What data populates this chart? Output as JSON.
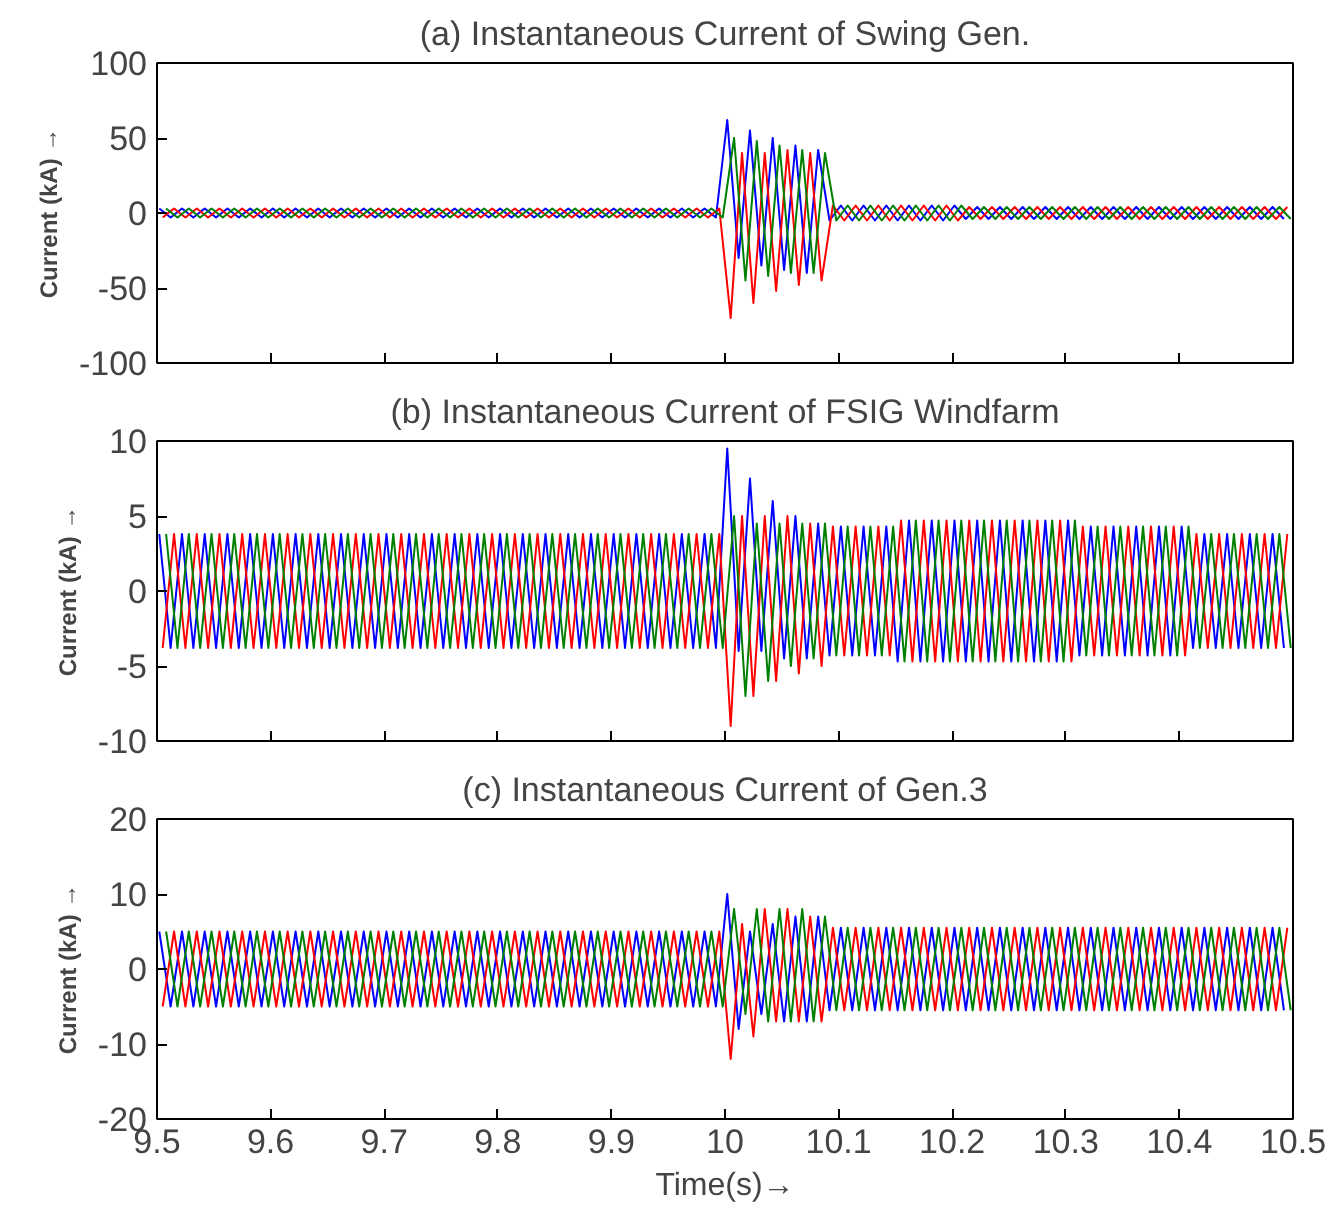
{
  "chart_data": [
    {
      "type": "line",
      "title": "(a) Instantaneous Current of Swing Gen.",
      "ylabel": "Current (kA) →",
      "xlim": [
        9.5,
        10.5
      ],
      "ylim": [
        -100,
        100
      ],
      "xticks": [
        9.5,
        9.6,
        9.7,
        9.8,
        9.9,
        10,
        10.1,
        10.2,
        10.3,
        10.4,
        10.5
      ],
      "yticks": [
        -100,
        -50,
        0,
        50,
        100
      ],
      "tick_labels": "y",
      "series": [
        {
          "color": "#0000ff",
          "x": [
            9.502,
            9.512,
            9.522,
            9.532,
            9.542,
            9.552,
            9.562,
            9.572,
            9.582,
            9.592,
            9.602,
            9.612,
            9.622,
            9.632,
            9.642,
            9.652,
            9.662,
            9.672,
            9.682,
            9.692,
            9.702,
            9.712,
            9.722,
            9.732,
            9.742,
            9.752,
            9.762,
            9.772,
            9.782,
            9.792,
            9.802,
            9.812,
            9.822,
            9.832,
            9.842,
            9.852,
            9.862,
            9.872,
            9.882,
            9.892,
            9.902,
            9.912,
            9.922,
            9.932,
            9.942,
            9.952,
            9.962,
            9.972,
            9.982,
            9.992,
            10.002,
            10.012,
            10.022,
            10.032,
            10.042,
            10.052,
            10.062,
            10.072,
            10.082,
            10.092,
            10.102,
            10.112,
            10.122,
            10.132,
            10.142,
            10.152,
            10.162,
            10.172,
            10.182,
            10.192,
            10.202,
            10.212,
            10.222,
            10.232,
            10.242,
            10.252,
            10.262,
            10.272,
            10.282,
            10.292,
            10.302,
            10.312,
            10.322,
            10.332,
            10.342,
            10.352,
            10.362,
            10.372,
            10.382,
            10.392,
            10.402,
            10.412,
            10.422,
            10.432,
            10.442,
            10.452,
            10.462,
            10.472,
            10.482,
            10.492
          ],
          "values": [
            3,
            -3,
            3,
            -3,
            3,
            -3,
            3,
            -3,
            3,
            -3,
            3,
            -3,
            3,
            -3,
            3,
            -3,
            3,
            -3,
            3,
            -3,
            3,
            -3,
            3,
            -3,
            3,
            -3,
            3,
            -3,
            3,
            -3,
            3,
            -3,
            3,
            -3,
            3,
            -3,
            3,
            -3,
            3,
            -3,
            3,
            -3,
            3,
            -3,
            3,
            -3,
            3,
            -3,
            3,
            -3,
            62,
            -30,
            55,
            -35,
            50,
            -38,
            45,
            -40,
            42,
            -5,
            5,
            -5,
            5,
            -5,
            5,
            -5,
            5,
            -5,
            5,
            -5,
            5,
            -4,
            4,
            -4,
            4,
            -4,
            4,
            -4,
            4,
            -4,
            4,
            -4,
            4,
            -4,
            4,
            -4,
            4,
            -4,
            4,
            -4,
            4,
            -4,
            4,
            -4,
            4,
            -4,
            4,
            -4,
            4,
            -4
          ]
        },
        {
          "color": "#ff0000",
          "x": [
            9.505,
            9.515,
            9.525,
            9.535,
            9.545,
            9.555,
            9.565,
            9.575,
            9.585,
            9.595,
            9.605,
            9.615,
            9.625,
            9.635,
            9.645,
            9.655,
            9.665,
            9.675,
            9.685,
            9.695,
            9.705,
            9.715,
            9.725,
            9.735,
            9.745,
            9.755,
            9.765,
            9.775,
            9.785,
            9.795,
            9.805,
            9.815,
            9.825,
            9.835,
            9.845,
            9.855,
            9.865,
            9.875,
            9.885,
            9.895,
            9.905,
            9.915,
            9.925,
            9.935,
            9.945,
            9.955,
            9.965,
            9.975,
            9.985,
            9.995,
            10.005,
            10.015,
            10.025,
            10.035,
            10.045,
            10.055,
            10.065,
            10.075,
            10.085,
            10.095,
            10.105,
            10.115,
            10.125,
            10.135,
            10.145,
            10.155,
            10.165,
            10.175,
            10.185,
            10.195,
            10.205,
            10.215,
            10.225,
            10.235,
            10.245,
            10.255,
            10.265,
            10.275,
            10.285,
            10.295,
            10.305,
            10.315,
            10.325,
            10.335,
            10.345,
            10.355,
            10.365,
            10.375,
            10.385,
            10.395,
            10.405,
            10.415,
            10.425,
            10.435,
            10.445,
            10.455,
            10.465,
            10.475,
            10.485,
            10.495
          ],
          "values": [
            -3,
            3,
            -3,
            3,
            -3,
            3,
            -3,
            3,
            -3,
            3,
            -3,
            3,
            -3,
            3,
            -3,
            3,
            -3,
            3,
            -3,
            3,
            -3,
            3,
            -3,
            3,
            -3,
            3,
            -3,
            3,
            -3,
            3,
            -3,
            3,
            -3,
            3,
            -3,
            3,
            -3,
            3,
            -3,
            3,
            -3,
            3,
            -3,
            3,
            -3,
            3,
            -3,
            3,
            -3,
            3,
            -70,
            40,
            -60,
            40,
            -52,
            42,
            -48,
            40,
            -45,
            5,
            -5,
            5,
            -5,
            5,
            -5,
            5,
            -5,
            5,
            -5,
            5,
            -5,
            4,
            -4,
            4,
            -4,
            4,
            -4,
            4,
            -4,
            4,
            -4,
            4,
            -4,
            4,
            -4,
            4,
            -4,
            4,
            -4,
            4,
            -4,
            4,
            -4,
            4,
            -4,
            4,
            -4,
            4,
            -4,
            4
          ]
        },
        {
          "color": "#008000",
          "x": [
            9.508,
            9.518,
            9.528,
            9.538,
            9.548,
            9.558,
            9.568,
            9.578,
            9.588,
            9.598,
            9.608,
            9.618,
            9.628,
            9.638,
            9.648,
            9.658,
            9.668,
            9.678,
            9.688,
            9.698,
            9.708,
            9.718,
            9.728,
            9.738,
            9.748,
            9.758,
            9.768,
            9.778,
            9.788,
            9.798,
            9.808,
            9.818,
            9.828,
            9.838,
            9.848,
            9.858,
            9.868,
            9.878,
            9.888,
            9.898,
            9.908,
            9.918,
            9.928,
            9.938,
            9.948,
            9.958,
            9.968,
            9.978,
            9.988,
            9.998,
            10.008,
            10.018,
            10.028,
            10.038,
            10.048,
            10.058,
            10.068,
            10.078,
            10.088,
            10.098,
            10.108,
            10.118,
            10.128,
            10.138,
            10.148,
            10.158,
            10.168,
            10.178,
            10.188,
            10.198,
            10.208,
            10.218,
            10.228,
            10.238,
            10.248,
            10.258,
            10.268,
            10.278,
            10.288,
            10.298,
            10.308,
            10.318,
            10.328,
            10.338,
            10.348,
            10.358,
            10.368,
            10.378,
            10.388,
            10.398,
            10.408,
            10.418,
            10.428,
            10.438,
            10.448,
            10.458,
            10.468,
            10.478,
            10.488,
            10.498
          ],
          "values": [
            3,
            -3,
            3,
            -3,
            3,
            -3,
            3,
            -3,
            3,
            -3,
            3,
            -3,
            3,
            -3,
            3,
            -3,
            3,
            -3,
            3,
            -3,
            3,
            -3,
            3,
            -3,
            3,
            -3,
            3,
            -3,
            3,
            -3,
            3,
            -3,
            3,
            -3,
            3,
            -3,
            3,
            -3,
            3,
            -3,
            3,
            -3,
            3,
            -3,
            3,
            -3,
            3,
            -3,
            3,
            -3,
            50,
            -45,
            48,
            -42,
            45,
            -40,
            42,
            -40,
            40,
            -5,
            5,
            -5,
            5,
            -5,
            5,
            -5,
            5,
            -5,
            5,
            -5,
            5,
            -4,
            4,
            -4,
            4,
            -4,
            4,
            -4,
            4,
            -4,
            4,
            -4,
            4,
            -4,
            4,
            -4,
            4,
            -4,
            4,
            -4,
            4,
            -4,
            4,
            -4,
            4,
            -4,
            4,
            -4,
            4,
            -4
          ]
        }
      ]
    },
    {
      "type": "line",
      "title": "(b) Instantaneous Current of FSIG Windfarm",
      "ylabel": "Current (kA) →",
      "xlim": [
        9.5,
        10.5
      ],
      "ylim": [
        -10,
        10
      ],
      "xticks": [
        9.5,
        9.6,
        9.7,
        9.8,
        9.9,
        10,
        10.1,
        10.2,
        10.3,
        10.4,
        10.5
      ],
      "yticks": [
        -10,
        -5,
        0,
        5,
        10
      ],
      "tick_labels": "y",
      "series": [
        {
          "color": "#0000ff",
          "x": [
            9.502,
            9.512,
            9.522,
            9.532,
            9.542,
            9.552,
            9.562,
            9.572,
            9.582,
            9.592,
            9.602,
            9.612,
            9.622,
            9.632,
            9.642,
            9.652,
            9.662,
            9.672,
            9.682,
            9.692,
            9.702,
            9.712,
            9.722,
            9.732,
            9.742,
            9.752,
            9.762,
            9.772,
            9.782,
            9.792,
            9.802,
            9.812,
            9.822,
            9.832,
            9.842,
            9.852,
            9.862,
            9.872,
            9.882,
            9.892,
            9.902,
            9.912,
            9.922,
            9.932,
            9.942,
            9.952,
            9.962,
            9.972,
            9.982,
            9.992,
            10.002,
            10.012,
            10.022,
            10.032,
            10.042,
            10.052,
            10.062,
            10.072,
            10.082,
            10.092,
            10.102,
            10.112,
            10.122,
            10.132,
            10.142,
            10.152,
            10.162,
            10.172,
            10.182,
            10.192,
            10.202,
            10.212,
            10.222,
            10.232,
            10.242,
            10.252,
            10.262,
            10.272,
            10.282,
            10.292,
            10.302,
            10.312,
            10.322,
            10.332,
            10.342,
            10.352,
            10.362,
            10.372,
            10.382,
            10.392,
            10.402,
            10.412,
            10.422,
            10.432,
            10.442,
            10.452,
            10.462,
            10.472,
            10.482,
            10.492
          ],
          "values": [
            3.8,
            -3.8,
            3.8,
            -3.8,
            3.8,
            -3.8,
            3.8,
            -3.8,
            3.8,
            -3.8,
            3.8,
            -3.8,
            3.8,
            -3.8,
            3.8,
            -3.8,
            3.8,
            -3.8,
            3.8,
            -3.8,
            3.8,
            -3.8,
            3.8,
            -3.8,
            3.8,
            -3.8,
            3.8,
            -3.8,
            3.8,
            -3.8,
            3.8,
            -3.8,
            3.8,
            -3.8,
            3.8,
            -3.8,
            3.8,
            -3.8,
            3.8,
            -3.8,
            3.8,
            -3.8,
            3.8,
            -3.8,
            3.8,
            -3.8,
            3.8,
            -3.8,
            3.8,
            -3.8,
            9.5,
            -4,
            7.5,
            -4,
            6,
            -4.5,
            5,
            -4.5,
            4.5,
            -4.3,
            4.3,
            -4.3,
            4.3,
            -4.3,
            4.3,
            -4.7,
            4.7,
            -4.7,
            4.7,
            -4.7,
            4.7,
            -4.7,
            4.7,
            -4.7,
            4.7,
            -4.7,
            4.7,
            -4.7,
            4.7,
            -4.7,
            4.7,
            -4.3,
            4.3,
            -4.3,
            4.3,
            -4.3,
            4.3,
            -4.3,
            4.3,
            -4.3,
            4.3,
            -3.8,
            3.8,
            -3.8,
            3.8,
            -3.8,
            3.8,
            -3.8,
            3.8,
            -3.8
          ]
        },
        {
          "color": "#ff0000",
          "x": [
            9.505,
            9.515,
            9.525,
            9.535,
            9.545,
            9.555,
            9.565,
            9.575,
            9.585,
            9.595,
            9.605,
            9.615,
            9.625,
            9.635,
            9.645,
            9.655,
            9.665,
            9.675,
            9.685,
            9.695,
            9.705,
            9.715,
            9.725,
            9.735,
            9.745,
            9.755,
            9.765,
            9.775,
            9.785,
            9.795,
            9.805,
            9.815,
            9.825,
            9.835,
            9.845,
            9.855,
            9.865,
            9.875,
            9.885,
            9.895,
            9.905,
            9.915,
            9.925,
            9.935,
            9.945,
            9.955,
            9.965,
            9.975,
            9.985,
            9.995,
            10.005,
            10.015,
            10.025,
            10.035,
            10.045,
            10.055,
            10.065,
            10.075,
            10.085,
            10.095,
            10.105,
            10.115,
            10.125,
            10.135,
            10.145,
            10.155,
            10.165,
            10.175,
            10.185,
            10.195,
            10.205,
            10.215,
            10.225,
            10.235,
            10.245,
            10.255,
            10.265,
            10.275,
            10.285,
            10.295,
            10.305,
            10.315,
            10.325,
            10.335,
            10.345,
            10.355,
            10.365,
            10.375,
            10.385,
            10.395,
            10.405,
            10.415,
            10.425,
            10.435,
            10.445,
            10.455,
            10.465,
            10.475,
            10.485,
            10.495
          ],
          "values": [
            -3.8,
            3.8,
            -3.8,
            3.8,
            -3.8,
            3.8,
            -3.8,
            3.8,
            -3.8,
            3.8,
            -3.8,
            3.8,
            -3.8,
            3.8,
            -3.8,
            3.8,
            -3.8,
            3.8,
            -3.8,
            3.8,
            -3.8,
            3.8,
            -3.8,
            3.8,
            -3.8,
            3.8,
            -3.8,
            3.8,
            -3.8,
            3.8,
            -3.8,
            3.8,
            -3.8,
            3.8,
            -3.8,
            3.8,
            -3.8,
            3.8,
            -3.8,
            3.8,
            -3.8,
            3.8,
            -3.8,
            3.8,
            -3.8,
            3.8,
            -3.8,
            3.8,
            -3.8,
            3.8,
            -9,
            5,
            -7,
            5,
            -6,
            5,
            -5.5,
            4.5,
            -5,
            4.3,
            -4.3,
            4.3,
            -4.3,
            4.3,
            -4.3,
            4.7,
            -4.7,
            4.7,
            -4.7,
            4.7,
            -4.7,
            4.7,
            -4.7,
            4.7,
            -4.7,
            4.7,
            -4.7,
            4.7,
            -4.7,
            4.7,
            -4.7,
            4.3,
            -4.3,
            4.3,
            -4.3,
            4.3,
            -4.3,
            4.3,
            -4.3,
            4.3,
            -4.3,
            3.8,
            -3.8,
            3.8,
            -3.8,
            3.8,
            -3.8,
            3.8,
            -3.8,
            3.8
          ]
        },
        {
          "color": "#008000",
          "x": [
            9.508,
            9.518,
            9.528,
            9.538,
            9.548,
            9.558,
            9.568,
            9.578,
            9.588,
            9.598,
            9.608,
            9.618,
            9.628,
            9.638,
            9.648,
            9.658,
            9.668,
            9.678,
            9.688,
            9.698,
            9.708,
            9.718,
            9.728,
            9.738,
            9.748,
            9.758,
            9.768,
            9.778,
            9.788,
            9.798,
            9.808,
            9.818,
            9.828,
            9.838,
            9.848,
            9.858,
            9.868,
            9.878,
            9.888,
            9.898,
            9.908,
            9.918,
            9.928,
            9.938,
            9.948,
            9.958,
            9.968,
            9.978,
            9.988,
            9.998,
            10.008,
            10.018,
            10.028,
            10.038,
            10.048,
            10.058,
            10.068,
            10.078,
            10.088,
            10.098,
            10.108,
            10.118,
            10.128,
            10.138,
            10.148,
            10.158,
            10.168,
            10.178,
            10.188,
            10.198,
            10.208,
            10.218,
            10.228,
            10.238,
            10.248,
            10.258,
            10.268,
            10.278,
            10.288,
            10.298,
            10.308,
            10.318,
            10.328,
            10.338,
            10.348,
            10.358,
            10.368,
            10.378,
            10.388,
            10.398,
            10.408,
            10.418,
            10.428,
            10.438,
            10.448,
            10.458,
            10.468,
            10.478,
            10.488,
            10.498
          ],
          "values": [
            3.8,
            -3.8,
            3.8,
            -3.8,
            3.8,
            -3.8,
            3.8,
            -3.8,
            3.8,
            -3.8,
            3.8,
            -3.8,
            3.8,
            -3.8,
            3.8,
            -3.8,
            3.8,
            -3.8,
            3.8,
            -3.8,
            3.8,
            -3.8,
            3.8,
            -3.8,
            3.8,
            -3.8,
            3.8,
            -3.8,
            3.8,
            -3.8,
            3.8,
            -3.8,
            3.8,
            -3.8,
            3.8,
            -3.8,
            3.8,
            -3.8,
            3.8,
            -3.8,
            3.8,
            -3.8,
            3.8,
            -3.8,
            3.8,
            -3.8,
            3.8,
            -3.8,
            3.8,
            -3.8,
            5,
            -7,
            4.5,
            -6,
            4.5,
            -5,
            4.5,
            -4.5,
            4.5,
            -4.3,
            4.3,
            -4.3,
            4.3,
            -4.3,
            4.3,
            -4.7,
            4.7,
            -4.7,
            4.7,
            -4.7,
            4.7,
            -4.7,
            4.7,
            -4.7,
            4.7,
            -4.7,
            4.7,
            -4.7,
            4.7,
            -4.7,
            4.7,
            -4.3,
            4.3,
            -4.3,
            4.3,
            -4.3,
            4.3,
            -4.3,
            4.3,
            -4.3,
            4.3,
            -3.8,
            3.8,
            -3.8,
            3.8,
            -3.8,
            3.8,
            -3.8,
            3.8,
            -3.8
          ]
        }
      ]
    },
    {
      "type": "line",
      "title": "(c) Instantaneous Current of Gen.3",
      "ylabel": "Current (kA) →",
      "xlabel": "Time(s)→",
      "xlim": [
        9.5,
        10.5
      ],
      "ylim": [
        -20,
        20
      ],
      "xticks": [
        9.5,
        9.6,
        9.7,
        9.8,
        9.9,
        10,
        10.1,
        10.2,
        10.3,
        10.4,
        10.5
      ],
      "yticks": [
        -20,
        -10,
        0,
        10,
        20
      ],
      "series": [
        {
          "color": "#0000ff",
          "x": [
            9.502,
            9.512,
            9.522,
            9.532,
            9.542,
            9.552,
            9.562,
            9.572,
            9.582,
            9.592,
            9.602,
            9.612,
            9.622,
            9.632,
            9.642,
            9.652,
            9.662,
            9.672,
            9.682,
            9.692,
            9.702,
            9.712,
            9.722,
            9.732,
            9.742,
            9.752,
            9.762,
            9.772,
            9.782,
            9.792,
            9.802,
            9.812,
            9.822,
            9.832,
            9.842,
            9.852,
            9.862,
            9.872,
            9.882,
            9.892,
            9.902,
            9.912,
            9.922,
            9.932,
            9.942,
            9.952,
            9.962,
            9.972,
            9.982,
            9.992,
            10.002,
            10.012,
            10.022,
            10.032,
            10.042,
            10.052,
            10.062,
            10.072,
            10.082,
            10.092,
            10.102,
            10.112,
            10.122,
            10.132,
            10.142,
            10.152,
            10.162,
            10.172,
            10.182,
            10.192,
            10.202,
            10.212,
            10.222,
            10.232,
            10.242,
            10.252,
            10.262,
            10.272,
            10.282,
            10.292,
            10.302,
            10.312,
            10.322,
            10.332,
            10.342,
            10.352,
            10.362,
            10.372,
            10.382,
            10.392,
            10.402,
            10.412,
            10.422,
            10.432,
            10.442,
            10.452,
            10.462,
            10.472,
            10.482,
            10.492
          ],
          "values": [
            5,
            -5,
            5,
            -5,
            5,
            -5,
            5,
            -5,
            5,
            -5,
            5,
            -5,
            5,
            -5,
            5,
            -5,
            5,
            -5,
            5,
            -5,
            5,
            -5,
            5,
            -5,
            5,
            -5,
            5,
            -5,
            5,
            -5,
            5,
            -5,
            5,
            -5,
            5,
            -5,
            5,
            -5,
            5,
            -5,
            5,
            -5,
            5,
            -5,
            5,
            -5,
            5,
            -5,
            5,
            -5,
            10,
            -8,
            5,
            -6,
            6,
            -7,
            7,
            -7,
            7,
            -5.5,
            5.5,
            -5.5,
            5.5,
            -5.5,
            5.5,
            -5.5,
            5.5,
            -5.5,
            5.5,
            -5.5,
            5.5,
            -5.5,
            5.5,
            -5.5,
            5.5,
            -5.5,
            5.5,
            -5.5,
            5.5,
            -5.5,
            5.5,
            -5.5,
            5.5,
            -5.5,
            5.5,
            -5.5,
            5.5,
            -5.5,
            5.5,
            -5.5,
            5.5,
            -5.5,
            5.5,
            -5.5,
            5.5,
            -5.5,
            5.5,
            -5.5,
            5.5,
            -5.5
          ]
        },
        {
          "color": "#ff0000",
          "x": [
            9.505,
            9.515,
            9.525,
            9.535,
            9.545,
            9.555,
            9.565,
            9.575,
            9.585,
            9.595,
            9.605,
            9.615,
            9.625,
            9.635,
            9.645,
            9.655,
            9.665,
            9.675,
            9.685,
            9.695,
            9.705,
            9.715,
            9.725,
            9.735,
            9.745,
            9.755,
            9.765,
            9.775,
            9.785,
            9.795,
            9.805,
            9.815,
            9.825,
            9.835,
            9.845,
            9.855,
            9.865,
            9.875,
            9.885,
            9.895,
            9.905,
            9.915,
            9.925,
            9.935,
            9.945,
            9.955,
            9.965,
            9.975,
            9.985,
            9.995,
            10.005,
            10.015,
            10.025,
            10.035,
            10.045,
            10.055,
            10.065,
            10.075,
            10.085,
            10.095,
            10.105,
            10.115,
            10.125,
            10.135,
            10.145,
            10.155,
            10.165,
            10.175,
            10.185,
            10.195,
            10.205,
            10.215,
            10.225,
            10.235,
            10.245,
            10.255,
            10.265,
            10.275,
            10.285,
            10.295,
            10.305,
            10.315,
            10.325,
            10.335,
            10.345,
            10.355,
            10.365,
            10.375,
            10.385,
            10.395,
            10.405,
            10.415,
            10.425,
            10.435,
            10.445,
            10.455,
            10.465,
            10.475,
            10.485,
            10.495
          ],
          "values": [
            -5,
            5,
            -5,
            5,
            -5,
            5,
            -5,
            5,
            -5,
            5,
            -5,
            5,
            -5,
            5,
            -5,
            5,
            -5,
            5,
            -5,
            5,
            -5,
            5,
            -5,
            5,
            -5,
            5,
            -5,
            5,
            -5,
            5,
            -5,
            5,
            -5,
            5,
            -5,
            5,
            -5,
            5,
            -5,
            5,
            -5,
            5,
            -5,
            5,
            -5,
            5,
            -5,
            5,
            -5,
            5,
            -12,
            6,
            -9,
            8,
            -7,
            8,
            -7,
            7,
            -7,
            5.5,
            -5.5,
            5.5,
            -5.5,
            5.5,
            -5.5,
            5.5,
            -5.5,
            5.5,
            -5.5,
            5.5,
            -5.5,
            5.5,
            -5.5,
            5.5,
            -5.5,
            5.5,
            -5.5,
            5.5,
            -5.5,
            5.5,
            -5.5,
            5.5,
            -5.5,
            5.5,
            -5.5,
            5.5,
            -5.5,
            5.5,
            -5.5,
            5.5,
            -5.5,
            5.5,
            -5.5,
            5.5,
            -5.5,
            5.5,
            -5.5,
            5.5,
            -5.5,
            5.5
          ]
        },
        {
          "color": "#008000",
          "x": [
            9.508,
            9.518,
            9.528,
            9.538,
            9.548,
            9.558,
            9.568,
            9.578,
            9.588,
            9.598,
            9.608,
            9.618,
            9.628,
            9.638,
            9.648,
            9.658,
            9.668,
            9.678,
            9.688,
            9.698,
            9.708,
            9.718,
            9.728,
            9.738,
            9.748,
            9.758,
            9.768,
            9.778,
            9.788,
            9.798,
            9.808,
            9.818,
            9.828,
            9.838,
            9.848,
            9.858,
            9.868,
            9.878,
            9.888,
            9.898,
            9.908,
            9.918,
            9.928,
            9.938,
            9.948,
            9.958,
            9.968,
            9.978,
            9.988,
            9.998,
            10.008,
            10.018,
            10.028,
            10.038,
            10.048,
            10.058,
            10.068,
            10.078,
            10.088,
            10.098,
            10.108,
            10.118,
            10.128,
            10.138,
            10.148,
            10.158,
            10.168,
            10.178,
            10.188,
            10.198,
            10.208,
            10.218,
            10.228,
            10.238,
            10.248,
            10.258,
            10.268,
            10.278,
            10.288,
            10.298,
            10.308,
            10.318,
            10.328,
            10.338,
            10.348,
            10.358,
            10.368,
            10.378,
            10.388,
            10.398,
            10.408,
            10.418,
            10.428,
            10.438,
            10.448,
            10.458,
            10.468,
            10.478,
            10.488,
            10.498
          ],
          "values": [
            5,
            -5,
            5,
            -5,
            5,
            -5,
            5,
            -5,
            5,
            -5,
            5,
            -5,
            5,
            -5,
            5,
            -5,
            5,
            -5,
            5,
            -5,
            5,
            -5,
            5,
            -5,
            5,
            -5,
            5,
            -5,
            5,
            -5,
            5,
            -5,
            5,
            -5,
            5,
            -5,
            5,
            -5,
            5,
            -5,
            5,
            -5,
            5,
            -5,
            5,
            -5,
            5,
            -5,
            5,
            -5,
            8,
            -6,
            8,
            -7,
            8,
            -7,
            8,
            -7,
            7,
            -5.5,
            5.5,
            -5.5,
            5.5,
            -5.5,
            5.5,
            -5.5,
            5.5,
            -5.5,
            5.5,
            -5.5,
            5.5,
            -5.5,
            5.5,
            -5.5,
            5.5,
            -5.5,
            5.5,
            -5.5,
            5.5,
            -5.5,
            5.5,
            -5.5,
            5.5,
            -5.5,
            5.5,
            -5.5,
            5.5,
            -5.5,
            5.5,
            -5.5,
            5.5,
            -5.5,
            5.5,
            -5.5,
            5.5,
            -5.5,
            5.5,
            -5.5,
            5.5,
            -5.5
          ]
        }
      ]
    }
  ]
}
